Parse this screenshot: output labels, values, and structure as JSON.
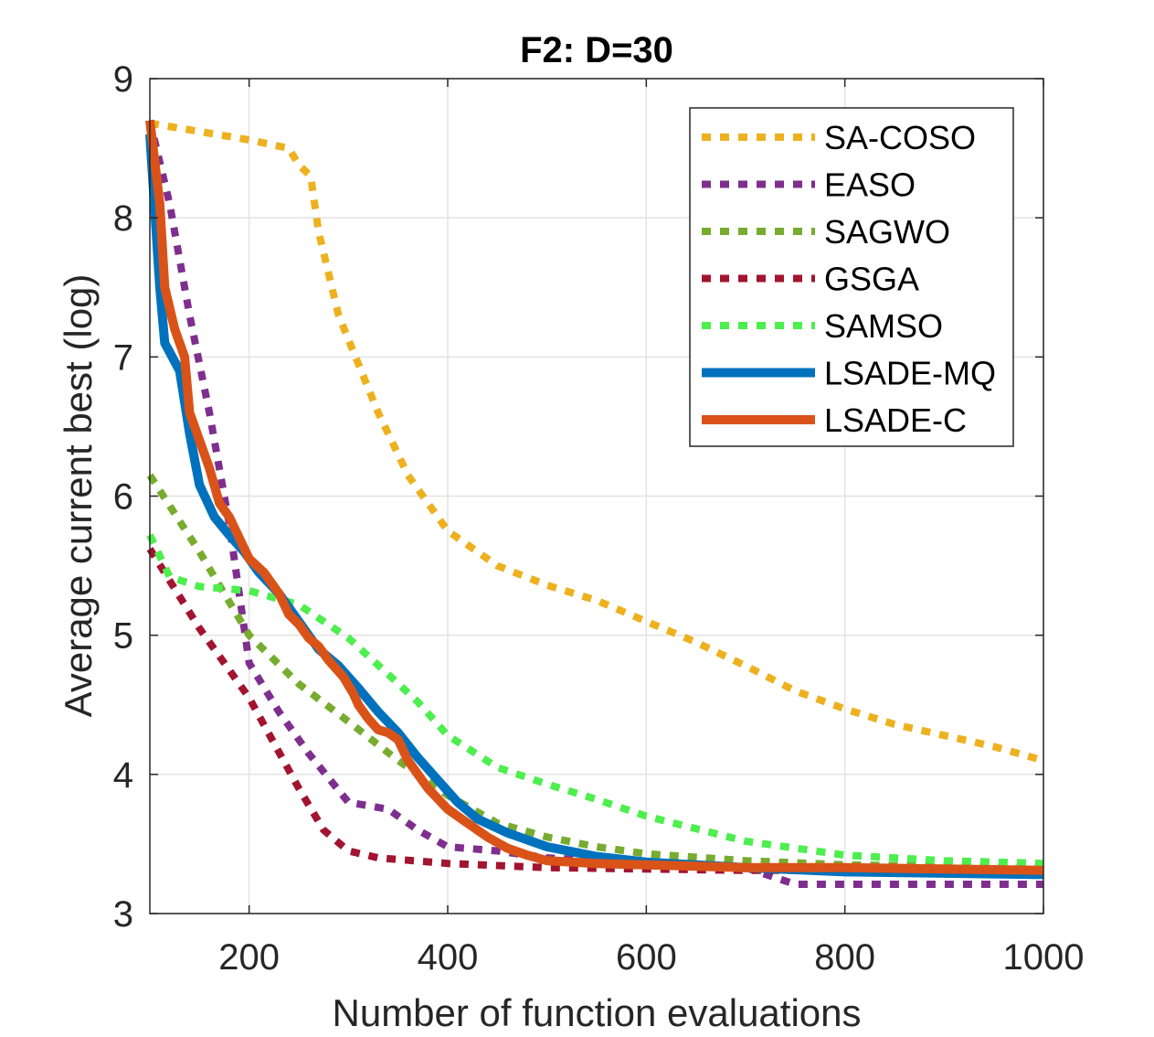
{
  "chart_data": {
    "type": "line",
    "title": "F2: D=30",
    "xlabel": "Number of function evaluations",
    "ylabel": "Average current best (log)",
    "xlim": [
      100,
      1000
    ],
    "ylim": [
      3,
      9
    ],
    "xticks": [
      200,
      400,
      600,
      800,
      1000
    ],
    "yticks": [
      3,
      4,
      5,
      6,
      7,
      8,
      9
    ],
    "grid": true,
    "legend_position": "top-right",
    "series": [
      {
        "name": "SA-COSO",
        "color": "#EDB120",
        "style": "dotted",
        "x": [
          100,
          150,
          200,
          240,
          250,
          262,
          270,
          290,
          310,
          330,
          360,
          400,
          450,
          500,
          550,
          600,
          650,
          700,
          750,
          800,
          850,
          900,
          950,
          1000
        ],
        "y": [
          8.68,
          8.62,
          8.56,
          8.5,
          8.38,
          8.3,
          7.9,
          7.3,
          6.95,
          6.6,
          6.15,
          5.75,
          5.5,
          5.36,
          5.25,
          5.1,
          4.95,
          4.78,
          4.6,
          4.47,
          4.36,
          4.28,
          4.2,
          4.1
        ]
      },
      {
        "name": "EASO",
        "color": "#7E2F8E",
        "style": "dotted",
        "x": [
          100,
          120,
          140,
          160,
          180,
          200,
          230,
          260,
          300,
          340,
          370,
          400,
          450,
          500,
          600,
          700,
          750,
          800,
          900,
          1000
        ],
        "y": [
          8.7,
          8.1,
          7.3,
          6.6,
          5.8,
          4.8,
          4.45,
          4.15,
          3.8,
          3.75,
          3.6,
          3.48,
          3.45,
          3.4,
          3.36,
          3.33,
          3.21,
          3.21,
          3.21,
          3.21
        ]
      },
      {
        "name": "SAGWO",
        "color": "#77AC30",
        "style": "dotted",
        "x": [
          100,
          150,
          200,
          250,
          300,
          350,
          400,
          450,
          500,
          550,
          600,
          700,
          800,
          900,
          1000
        ],
        "y": [
          6.15,
          5.6,
          5.0,
          4.65,
          4.38,
          4.1,
          3.85,
          3.65,
          3.55,
          3.48,
          3.43,
          3.38,
          3.35,
          3.34,
          3.33
        ]
      },
      {
        "name": "GSGA",
        "color": "#A2142F",
        "style": "dotted",
        "x": [
          100,
          150,
          200,
          250,
          275,
          300,
          330,
          400,
          500,
          600,
          700,
          800,
          900,
          1000
        ],
        "y": [
          5.62,
          5.05,
          4.55,
          3.9,
          3.6,
          3.45,
          3.4,
          3.36,
          3.33,
          3.32,
          3.31,
          3.31,
          3.31,
          3.31
        ]
      },
      {
        "name": "SAMSO",
        "color": "#4DEE4D",
        "style": "dotted",
        "x": [
          100,
          120,
          150,
          200,
          250,
          300,
          340,
          370,
          400,
          450,
          500,
          550,
          600,
          700,
          800,
          900,
          1000
        ],
        "y": [
          5.72,
          5.42,
          5.35,
          5.32,
          5.22,
          4.98,
          4.72,
          4.52,
          4.28,
          4.05,
          3.93,
          3.82,
          3.7,
          3.52,
          3.42,
          3.38,
          3.36
        ]
      },
      {
        "name": "LSADE-MQ",
        "color": "#0072BD",
        "style": "solid",
        "x": [
          100,
          110,
          115,
          130,
          140,
          150,
          165,
          180,
          195,
          210,
          230,
          250,
          270,
          290,
          310,
          330,
          350,
          370,
          390,
          410,
          430,
          460,
          500,
          550,
          600,
          700,
          800,
          900,
          1000
        ],
        "y": [
          8.6,
          7.5,
          7.1,
          6.9,
          6.45,
          6.08,
          5.85,
          5.72,
          5.6,
          5.45,
          5.3,
          5.1,
          4.9,
          4.78,
          4.62,
          4.45,
          4.3,
          4.12,
          3.96,
          3.8,
          3.68,
          3.58,
          3.48,
          3.41,
          3.37,
          3.33,
          3.3,
          3.29,
          3.28
        ]
      },
      {
        "name": "LSADE-C",
        "color": "#D95319",
        "style": "solid",
        "x": [
          100,
          110,
          115,
          125,
          135,
          140,
          150,
          160,
          170,
          180,
          190,
          200,
          215,
          230,
          240,
          250,
          260,
          270,
          280,
          295,
          305,
          310,
          320,
          330,
          340,
          350,
          360,
          370,
          380,
          400,
          420,
          440,
          460,
          480,
          500,
          550,
          600,
          700,
          800,
          900,
          1000
        ],
        "y": [
          8.7,
          8.1,
          7.5,
          7.2,
          7.0,
          6.6,
          6.4,
          6.2,
          5.95,
          5.85,
          5.7,
          5.55,
          5.45,
          5.3,
          5.15,
          5.08,
          4.98,
          4.92,
          4.82,
          4.7,
          4.58,
          4.5,
          4.4,
          4.32,
          4.3,
          4.25,
          4.1,
          4.0,
          3.9,
          3.75,
          3.65,
          3.55,
          3.47,
          3.42,
          3.38,
          3.36,
          3.35,
          3.33,
          3.33,
          3.32,
          3.31
        ]
      }
    ]
  }
}
